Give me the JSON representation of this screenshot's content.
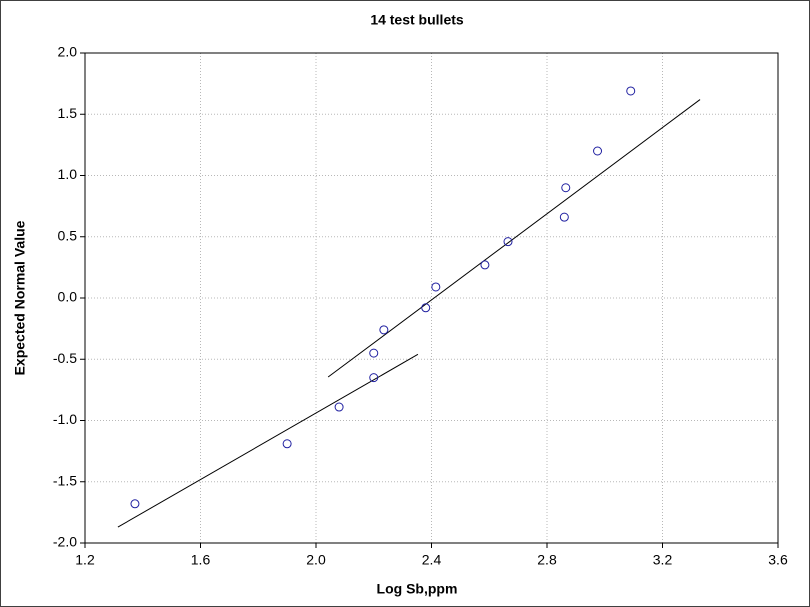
{
  "chart_data": {
    "type": "scatter",
    "title": "14 test bullets",
    "x_label": "Log Sb,ppm",
    "y_label": "Expected Normal Value",
    "x": [
      1.373,
      1.9,
      2.08,
      2.2,
      2.2,
      2.235,
      2.38,
      2.415,
      2.585,
      2.665,
      2.86,
      2.865,
      2.975,
      3.09
    ],
    "y": [
      -1.68,
      -1.19,
      -0.89,
      -0.65,
      -0.45,
      -0.26,
      -0.08,
      0.09,
      0.27,
      0.46,
      0.66,
      0.9,
      1.2,
      1.69
    ],
    "color": "#1f1fa0",
    "lines": [
      {
        "x": [
          1.314,
          2.353
        ],
        "y": [
          -1.87,
          -0.46
        ],
        "color": "#000000"
      },
      {
        "x": [
          2.042,
          3.33
        ],
        "y": [
          -0.645,
          1.62
        ],
        "color": "#000000"
      }
    ],
    "xlim": [
      1.2,
      3.6
    ],
    "ylim": [
      -2.0,
      2.0
    ],
    "xticks": [
      1.2,
      1.6,
      {
        "value": 2.0,
        "label": "2.0"
      },
      2.4,
      2.8,
      3.2,
      3.6
    ],
    "yticks": [
      {
        "value": 2.0,
        "label": "2.0"
      },
      1.5,
      {
        "value": 1.0,
        "label": "1.0"
      },
      0.5,
      {
        "value": 0.0,
        "label": "0.0"
      },
      -0.5,
      {
        "value": -1.0,
        "label": "-1.0"
      },
      -1.5,
      {
        "value": -2.0,
        "label": "-2.0"
      }
    ],
    "grid": true
  }
}
